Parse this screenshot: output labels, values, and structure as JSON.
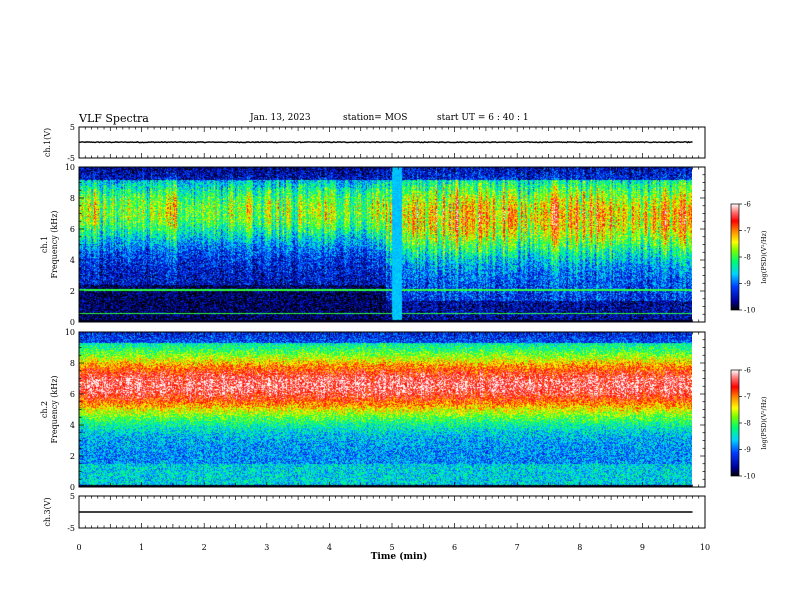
{
  "header": {
    "title": "VLF Spectra",
    "date": "Jan. 13, 2023",
    "station": "station= MOS",
    "start": "start  UT  =   6  : 40 : 1"
  },
  "chart_data": [
    {
      "type": "line",
      "panel": "ch1-voltage",
      "ylabel": "ch.1(V)",
      "ylim": [
        -5,
        5
      ],
      "yticks": [
        "5",
        "-5"
      ],
      "xlim": [
        0,
        10
      ],
      "series": [
        {
          "x": [
            0,
            9.8
          ],
          "y": [
            0.1,
            0.1
          ]
        }
      ]
    },
    {
      "type": "heatmap",
      "panel": "ch1-spectrogram",
      "ylabel": "ch.1\nFrequency (kHz)",
      "ylim": [
        0,
        10
      ],
      "yticks": [
        "0",
        "2",
        "4",
        "6",
        "8",
        "10"
      ],
      "xlim": [
        0,
        10
      ],
      "data_extent_x": [
        0,
        9.8
      ],
      "gap_x": [
        5.0,
        5.15
      ],
      "colorbar": {
        "label": "log(PSD)(V²/Hz)",
        "range": [
          -10,
          -6
        ],
        "ticks": [
          "-6",
          "-7",
          "-8",
          "-9",
          "-10"
        ]
      }
    },
    {
      "type": "heatmap",
      "panel": "ch2-spectrogram",
      "ylabel": "ch.2\nFrequency (kHz)",
      "ylim": [
        0,
        10
      ],
      "yticks": [
        "0",
        "2",
        "4",
        "6",
        "8",
        "10"
      ],
      "xlim": [
        0,
        10
      ],
      "data_extent_x": [
        0,
        9.8
      ],
      "colorbar": {
        "label": "log(PSD)(V²/Hz)",
        "range": [
          -10,
          -6
        ],
        "ticks": [
          "-6",
          "-7",
          "-8",
          "-9",
          "-10"
        ]
      }
    },
    {
      "type": "line",
      "panel": "ch3-voltage",
      "ylabel": "ch.3(V)",
      "ylim": [
        -5,
        5
      ],
      "yticks": [
        "5",
        "-5"
      ],
      "xlim": [
        0,
        10
      ],
      "xlabel": "Time  (min)",
      "xticks": [
        "0",
        "1",
        "2",
        "3",
        "4",
        "5",
        "6",
        "7",
        "8",
        "9",
        "10"
      ],
      "series": [
        {
          "x": [
            0,
            9.8
          ],
          "y": [
            0.0,
            0.0
          ]
        }
      ]
    }
  ],
  "colors": {
    "background": "#ffffff",
    "axis": "#000000",
    "colormap": [
      "#000000",
      "#0000c8",
      "#00c8ff",
      "#00ff60",
      "#ffff00",
      "#ff6000",
      "#ff0000",
      "#ffffff"
    ]
  }
}
